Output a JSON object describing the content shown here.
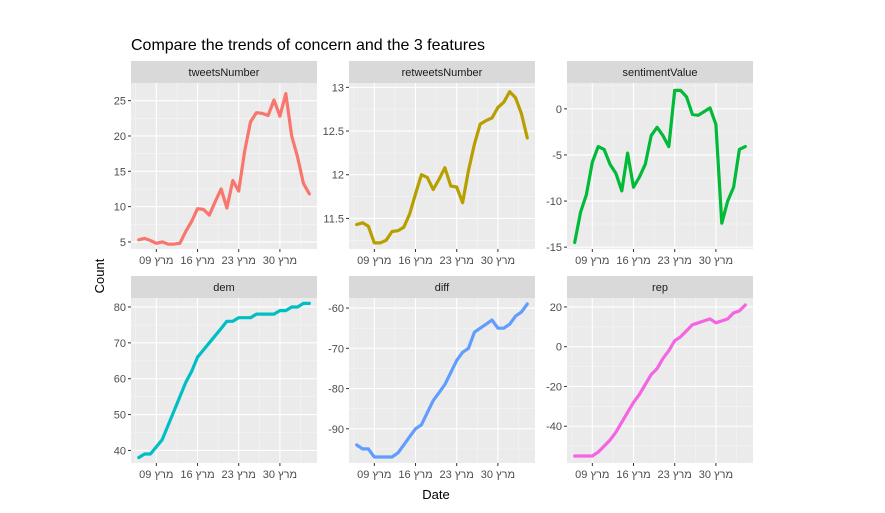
{
  "chart_data": {
    "type": "line",
    "title": "Compare the trends of concern and the 3 features",
    "xlabel": "Date",
    "ylabel": "Count",
    "grid": true,
    "x_ticks": [
      "מרץ 09",
      "מרץ 16",
      "מרץ 23",
      "מרץ 30"
    ],
    "x": [
      "03-06",
      "03-07",
      "03-08",
      "03-09",
      "03-10",
      "03-11",
      "03-12",
      "03-13",
      "03-14",
      "03-15",
      "03-16",
      "03-17",
      "03-18",
      "03-19",
      "03-20",
      "03-21",
      "03-22",
      "03-23",
      "03-24",
      "03-25",
      "03-26",
      "03-27",
      "03-28",
      "03-29",
      "03-30",
      "03-31",
      "04-01",
      "04-02",
      "04-03",
      "04-04"
    ],
    "facets": [
      {
        "name": "tweetsNumber",
        "color": "#F8766D",
        "ylim": [
          4,
          27.5
        ],
        "y_ticks": [
          5,
          10,
          15,
          20,
          25
        ],
        "values": [
          5.3,
          5.5,
          5.2,
          4.8,
          5.0,
          4.7,
          4.7,
          4.8,
          6.5,
          7.9,
          9.7,
          9.6,
          8.8,
          10.7,
          12.5,
          9.8,
          13.7,
          12.2,
          17.8,
          22.0,
          23.3,
          23.2,
          22.9,
          25.1,
          22.8,
          26.0,
          20.0,
          17.0,
          13.3,
          11.8
        ]
      },
      {
        "name": "retweetsNumber",
        "color": "#B79F00",
        "ylim": [
          11.15,
          13.05
        ],
        "y_ticks": [
          11.5,
          12.0,
          12.5,
          13.0
        ],
        "values": [
          11.43,
          11.45,
          11.41,
          11.22,
          11.22,
          11.25,
          11.35,
          11.36,
          11.4,
          11.55,
          11.78,
          12.0,
          11.97,
          11.83,
          11.95,
          12.08,
          11.87,
          11.86,
          11.68,
          12.05,
          12.35,
          12.58,
          12.62,
          12.65,
          12.77,
          12.83,
          12.95,
          12.88,
          12.7,
          12.42
        ]
      },
      {
        "name": "sentimentValue",
        "color": "#00BA38",
        "ylim": [
          -15.2,
          2.8
        ],
        "y_ticks": [
          0,
          -5,
          -10,
          -15
        ],
        "values": [
          -14.5,
          -11.2,
          -9.3,
          -5.8,
          -4.1,
          -4.4,
          -6.0,
          -7.0,
          -8.9,
          -4.8,
          -8.5,
          -7.4,
          -6.0,
          -2.9,
          -2.0,
          -2.9,
          -4.1,
          2.0,
          2.0,
          1.3,
          -0.6,
          -0.7,
          -0.3,
          0.1,
          -1.7,
          -12.4,
          -10.0,
          -8.5,
          -4.4,
          -4.1
        ]
      },
      {
        "name": "dem",
        "color": "#00BFC4",
        "ylim": [
          36.5,
          82.5
        ],
        "y_ticks": [
          40,
          50,
          60,
          70,
          80
        ],
        "values": [
          38,
          39,
          39,
          41,
          43,
          47,
          51,
          55,
          59,
          62,
          66,
          68,
          70,
          72,
          74,
          76,
          76,
          77,
          77,
          77,
          78,
          78,
          78,
          78,
          79,
          79,
          80,
          80,
          81,
          81
        ]
      },
      {
        "name": "diff",
        "color": "#619CFF",
        "ylim": [
          -98.5,
          -57.5
        ],
        "y_ticks": [
          -60,
          -70,
          -80,
          -90
        ],
        "values": [
          -94,
          -95,
          -95,
          -97,
          -97,
          -97,
          -97,
          -96,
          -94,
          -92,
          -90,
          -89,
          -86,
          -83,
          -81,
          -79,
          -76,
          -73,
          -71,
          -70,
          -66,
          -65,
          -64,
          -63,
          -65,
          -65,
          -64,
          -62,
          -61,
          -59
        ]
      },
      {
        "name": "rep",
        "color": "#F564E3",
        "ylim": [
          -58.5,
          24.5
        ],
        "y_ticks": [
          20,
          0,
          -20,
          -40
        ],
        "values": [
          -55,
          -55,
          -55,
          -55,
          -53,
          -50,
          -47,
          -43,
          -38,
          -33,
          -28,
          -24,
          -19,
          -14,
          -11,
          -6,
          -2,
          3,
          5,
          8,
          11,
          12,
          13,
          14,
          12,
          13,
          14,
          17,
          18,
          21
        ]
      }
    ]
  }
}
